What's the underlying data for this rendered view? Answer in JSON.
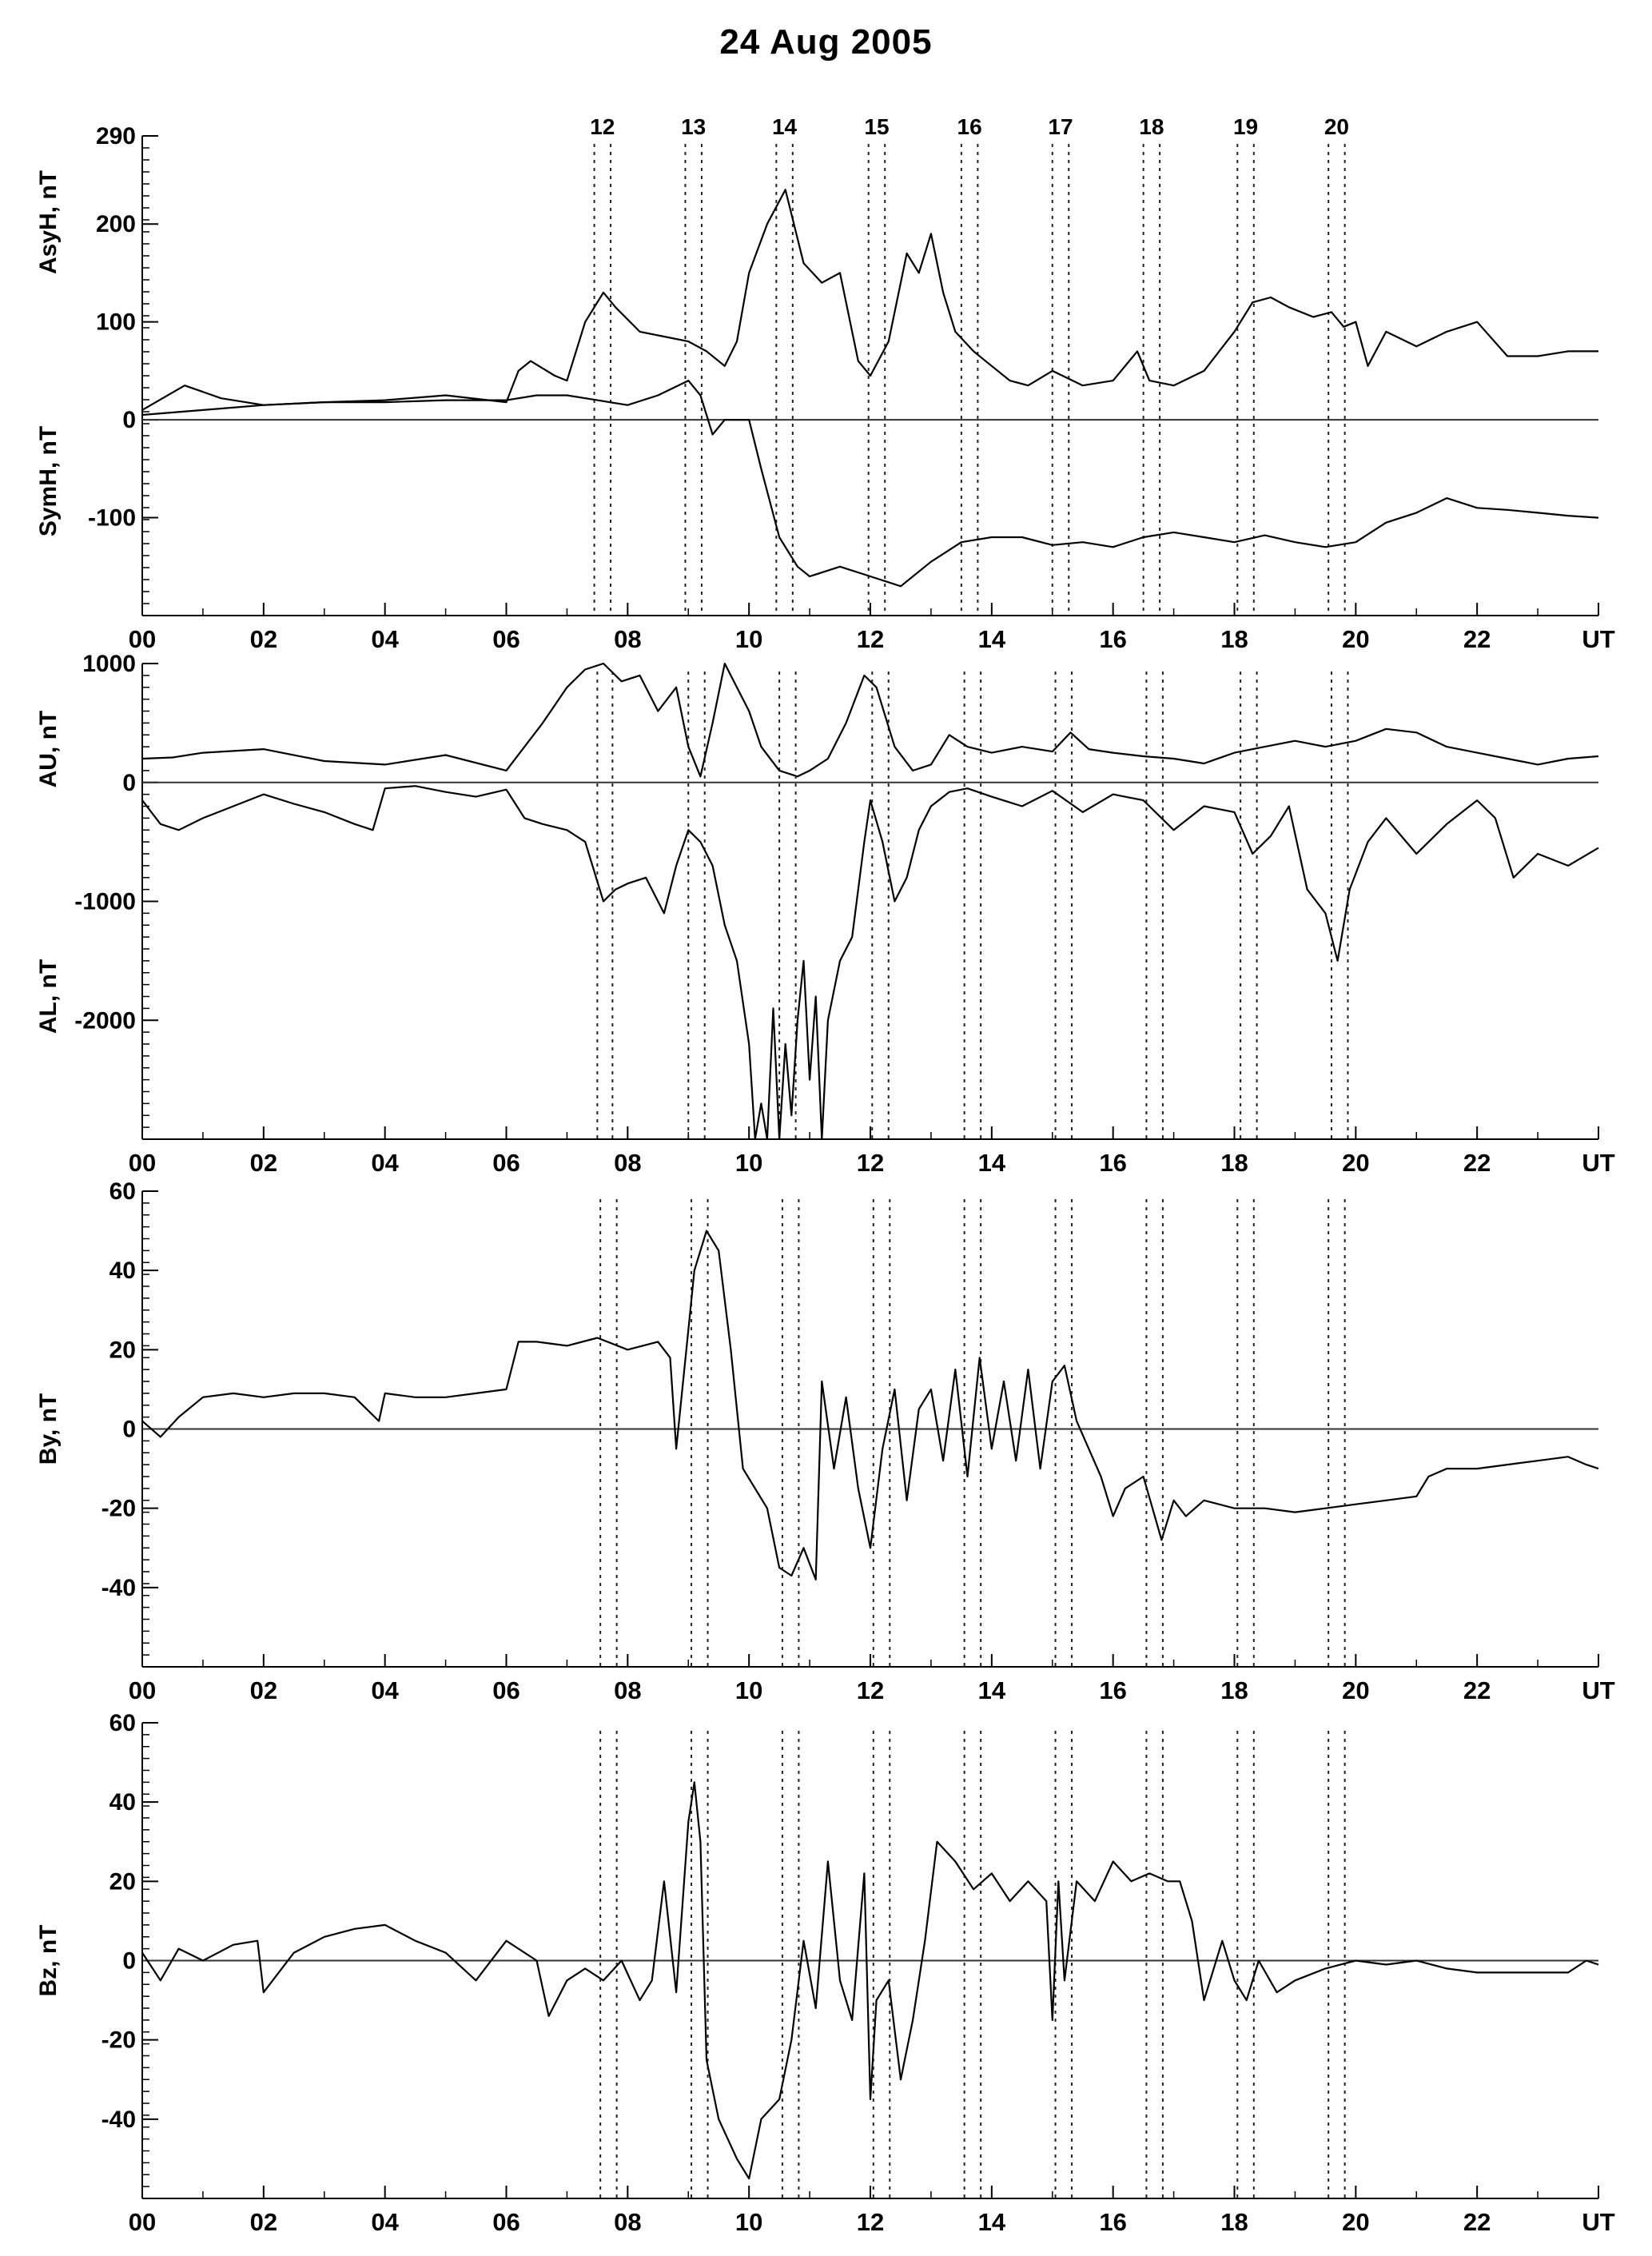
{
  "title": "24  Aug  2005",
  "x_axis": {
    "ticks": [
      "00",
      "02",
      "04",
      "06",
      "08",
      "10",
      "12",
      "14",
      "16",
      "18",
      "20",
      "22",
      "UT"
    ],
    "range_hours": [
      0,
      24
    ]
  },
  "chart_data": [
    {
      "type": "line",
      "panel": "AsyH / SymH",
      "ylabels": [
        "AsyH, nT",
        "SymH, nT"
      ],
      "ylim": [
        -200,
        290
      ],
      "yticks": [
        290,
        200,
        100,
        0,
        -100
      ],
      "event_numbers": [
        "12",
        "13",
        "14",
        "15",
        "16",
        "17",
        "18",
        "19",
        "20"
      ],
      "events": [
        [
          7.45,
          7.72
        ],
        [
          8.95,
          9.22
        ],
        [
          10.45,
          10.72
        ],
        [
          11.97,
          12.24
        ],
        [
          13.5,
          13.77
        ],
        [
          15.0,
          15.27
        ],
        [
          16.5,
          16.77
        ],
        [
          18.05,
          18.32
        ],
        [
          19.55,
          19.82
        ]
      ],
      "series": [
        {
          "name": "AsyH",
          "x": [
            0,
            0.7,
            1.3,
            2,
            3,
            4,
            5,
            6,
            6.2,
            6.4,
            6.8,
            7,
            7.3,
            7.6,
            7.8,
            8.2,
            8.6,
            9,
            9.3,
            9.6,
            9.8,
            10,
            10.3,
            10.6,
            10.9,
            11.2,
            11.5,
            11.8,
            12,
            12.3,
            12.6,
            12.8,
            13,
            13.2,
            13.4,
            13.7,
            14,
            14.3,
            14.6,
            15,
            15.5,
            16,
            16.4,
            16.6,
            17,
            17.5,
            18,
            18.3,
            18.6,
            18.9,
            19.3,
            19.6,
            19.8,
            20,
            20.2,
            20.5,
            21,
            21.5,
            22,
            22.5,
            23,
            23.5,
            24
          ],
          "y": [
            10,
            35,
            22,
            15,
            18,
            20,
            25,
            18,
            50,
            60,
            45,
            40,
            100,
            130,
            115,
            90,
            85,
            80,
            70,
            55,
            80,
            150,
            200,
            235,
            160,
            140,
            150,
            60,
            45,
            80,
            170,
            150,
            190,
            130,
            90,
            70,
            55,
            40,
            35,
            50,
            35,
            40,
            70,
            40,
            35,
            50,
            90,
            120,
            125,
            115,
            105,
            110,
            95,
            100,
            55,
            90,
            75,
            90,
            100,
            65,
            65,
            70,
            70
          ]
        },
        {
          "name": "SymH",
          "x": [
            0,
            1,
            2,
            3,
            4,
            5,
            6,
            6.5,
            7,
            7.5,
            8,
            8.5,
            9,
            9.2,
            9.4,
            9.6,
            10,
            10.2,
            10.5,
            10.8,
            11,
            11.5,
            12,
            12.5,
            13,
            13.5,
            14,
            14.5,
            15,
            15.5,
            16,
            16.5,
            17,
            17.5,
            18,
            18.5,
            19,
            19.5,
            20,
            20.5,
            21,
            21.5,
            22,
            22.5,
            23,
            23.5,
            24
          ],
          "y": [
            5,
            10,
            15,
            18,
            18,
            20,
            20,
            25,
            25,
            20,
            15,
            25,
            40,
            25,
            -15,
            0,
            0,
            -50,
            -120,
            -150,
            -160,
            -150,
            -160,
            -170,
            -145,
            -125,
            -120,
            -120,
            -128,
            -125,
            -130,
            -120,
            -115,
            -120,
            -125,
            -118,
            -125,
            -130,
            -125,
            -105,
            -95,
            -80,
            -90,
            -92,
            -95,
            -98,
            -100
          ]
        }
      ]
    },
    {
      "type": "line",
      "panel": "AU / AL",
      "ylabels": [
        "AU, nT",
        "AL, nT"
      ],
      "ylim": [
        -3000,
        1000
      ],
      "yticks": [
        1000,
        0,
        -1000,
        -2000
      ],
      "events": [
        [
          7.5,
          7.75
        ],
        [
          9.0,
          9.27
        ],
        [
          10.5,
          10.77
        ],
        [
          12.03,
          12.3
        ],
        [
          13.55,
          13.82
        ],
        [
          15.05,
          15.32
        ],
        [
          16.55,
          16.82
        ],
        [
          18.1,
          18.37
        ],
        [
          19.6,
          19.87
        ]
      ],
      "series": [
        {
          "name": "AU",
          "x": [
            0,
            0.5,
            1,
            2,
            3,
            4,
            5,
            6,
            6.3,
            6.6,
            7,
            7.3,
            7.6,
            7.9,
            8.2,
            8.5,
            8.8,
            9,
            9.2,
            9.4,
            9.6,
            9.8,
            10,
            10.2,
            10.5,
            10.8,
            11,
            11.3,
            11.6,
            11.9,
            12.1,
            12.4,
            12.7,
            13,
            13.3,
            13.6,
            14,
            14.5,
            15,
            15.3,
            15.6,
            16,
            16.5,
            17,
            17.5,
            18,
            18.5,
            19,
            19.5,
            20,
            20.5,
            21,
            21.5,
            22,
            22.5,
            23,
            23.5,
            24
          ],
          "y": [
            200,
            210,
            250,
            280,
            180,
            150,
            230,
            100,
            300,
            500,
            800,
            950,
            1000,
            850,
            900,
            600,
            800,
            300,
            50,
            500,
            1000,
            800,
            600,
            300,
            100,
            50,
            100,
            200,
            500,
            900,
            800,
            300,
            100,
            150,
            400,
            300,
            250,
            300,
            260,
            420,
            280,
            250,
            220,
            200,
            160,
            250,
            300,
            350,
            300,
            350,
            450,
            420,
            300,
            250,
            200,
            150,
            200,
            220
          ]
        },
        {
          "name": "AL",
          "x": [
            0,
            0.3,
            0.6,
            1,
            1.5,
            2,
            2.5,
            3,
            3.5,
            3.8,
            4,
            4.5,
            5,
            5.5,
            6,
            6.3,
            6.6,
            7,
            7.3,
            7.6,
            7.8,
            8,
            8.3,
            8.6,
            8.8,
            9,
            9.2,
            9.4,
            9.6,
            9.8,
            10,
            10.1,
            10.2,
            10.3,
            10.4,
            10.5,
            10.6,
            10.7,
            10.8,
            10.9,
            11,
            11.1,
            11.2,
            11.3,
            11.5,
            11.7,
            11.9,
            12,
            12.2,
            12.4,
            12.6,
            12.8,
            13,
            13.3,
            13.6,
            14,
            14.5,
            15,
            15.5,
            16,
            16.5,
            17,
            17.5,
            18,
            18.3,
            18.6,
            18.9,
            19.2,
            19.5,
            19.7,
            19.9,
            20.2,
            20.5,
            21,
            21.5,
            22,
            22.3,
            22.6,
            23,
            23.5,
            24
          ],
          "y": [
            -150,
            -350,
            -400,
            -300,
            -200,
            -100,
            -180,
            -250,
            -350,
            -400,
            -50,
            -30,
            -80,
            -120,
            -60,
            -300,
            -350,
            -400,
            -500,
            -1000,
            -900,
            -850,
            -800,
            -1100,
            -700,
            -400,
            -500,
            -700,
            -1200,
            -1500,
            -2200,
            -3000,
            -2700,
            -3000,
            -1900,
            -3000,
            -2200,
            -2800,
            -2000,
            -1500,
            -2500,
            -1800,
            -3000,
            -2000,
            -1500,
            -1300,
            -500,
            -150,
            -500,
            -1000,
            -800,
            -400,
            -200,
            -80,
            -50,
            -120,
            -200,
            -70,
            -250,
            -100,
            -150,
            -400,
            -200,
            -250,
            -600,
            -450,
            -200,
            -900,
            -1100,
            -1500,
            -900,
            -500,
            -300,
            -600,
            -350,
            -150,
            -300,
            -800,
            -600,
            -700,
            -550
          ]
        }
      ]
    },
    {
      "type": "line",
      "panel": "By",
      "ylabels": [
        "By, nT"
      ],
      "ylim": [
        -60,
        60
      ],
      "yticks": [
        60,
        40,
        20,
        0,
        -20,
        -40
      ],
      "events": [
        [
          7.55,
          7.82
        ],
        [
          9.05,
          9.32
        ],
        [
          10.55,
          10.82
        ],
        [
          12.05,
          12.32
        ],
        [
          13.55,
          13.82
        ],
        [
          15.05,
          15.32
        ],
        [
          16.55,
          16.82
        ],
        [
          18.05,
          18.32
        ],
        [
          19.55,
          19.82
        ]
      ],
      "series": [
        {
          "name": "By",
          "x": [
            0,
            0.3,
            0.6,
            1,
            1.5,
            2,
            2.5,
            3,
            3.5,
            3.9,
            4,
            4.5,
            5,
            5.5,
            6,
            6.2,
            6.5,
            7,
            7.5,
            8,
            8.5,
            8.7,
            8.8,
            9,
            9.1,
            9.3,
            9.5,
            9.7,
            9.9,
            10.1,
            10.3,
            10.5,
            10.7,
            10.9,
            11.1,
            11.2,
            11.4,
            11.6,
            11.8,
            12,
            12.2,
            12.4,
            12.6,
            12.8,
            13,
            13.2,
            13.4,
            13.6,
            13.8,
            14,
            14.2,
            14.4,
            14.6,
            14.8,
            15,
            15.2,
            15.4,
            15.6,
            15.8,
            16,
            16.2,
            16.5,
            16.8,
            17,
            17.2,
            17.5,
            18,
            18.5,
            19,
            19.5,
            20,
            20.5,
            21,
            21.2,
            21.5,
            22,
            22.5,
            23,
            23.5,
            23.8,
            24
          ],
          "y": [
            2,
            -2,
            3,
            8,
            9,
            8,
            9,
            9,
            8,
            2,
            9,
            8,
            8,
            9,
            10,
            22,
            22,
            21,
            23,
            20,
            22,
            18,
            -5,
            25,
            40,
            50,
            45,
            20,
            -10,
            -15,
            -20,
            -35,
            -37,
            -30,
            -38,
            12,
            -10,
            8,
            -15,
            -30,
            -5,
            10,
            -18,
            5,
            10,
            -8,
            15,
            -12,
            18,
            -5,
            12,
            -8,
            15,
            -10,
            12,
            16,
            2,
            -5,
            -12,
            -22,
            -15,
            -12,
            -28,
            -18,
            -22,
            -18,
            -20,
            -20,
            -21,
            -20,
            -19,
            -18,
            -17,
            -12,
            -10,
            -10,
            -9,
            -8,
            -7,
            -9,
            -10
          ]
        }
      ]
    },
    {
      "type": "line",
      "panel": "Bz",
      "ylabels": [
        "Bz, nT"
      ],
      "ylim": [
        -60,
        60
      ],
      "yticks": [
        60,
        40,
        20,
        0,
        -20,
        -40
      ],
      "events": [
        [
          7.55,
          7.82
        ],
        [
          9.05,
          9.32
        ],
        [
          10.55,
          10.82
        ],
        [
          12.05,
          12.32
        ],
        [
          13.55,
          13.82
        ],
        [
          15.05,
          15.32
        ],
        [
          16.55,
          16.82
        ],
        [
          18.05,
          18.32
        ],
        [
          19.55,
          19.82
        ]
      ],
      "series": [
        {
          "name": "Bz",
          "x": [
            0,
            0.3,
            0.6,
            1,
            1.5,
            1.9,
            2,
            2.5,
            3,
            3.5,
            4,
            4.5,
            5,
            5.5,
            6,
            6.5,
            6.7,
            7,
            7.3,
            7.6,
            7.9,
            8.2,
            8.4,
            8.6,
            8.8,
            9,
            9.1,
            9.2,
            9.3,
            9.5,
            9.8,
            10,
            10.2,
            10.5,
            10.7,
            10.9,
            11.1,
            11.3,
            11.5,
            11.7,
            11.9,
            12,
            12.1,
            12.3,
            12.5,
            12.7,
            12.9,
            13.1,
            13.4,
            13.7,
            14,
            14.3,
            14.6,
            14.9,
            15,
            15.1,
            15.2,
            15.4,
            15.7,
            16,
            16.3,
            16.6,
            16.9,
            17.1,
            17.3,
            17.5,
            17.8,
            18,
            18.2,
            18.4,
            18.7,
            19,
            19.5,
            20,
            20.5,
            21,
            21.5,
            22,
            22.5,
            23,
            23.5,
            23.8,
            24
          ],
          "y": [
            2,
            -5,
            3,
            0,
            4,
            5,
            -8,
            2,
            6,
            8,
            9,
            5,
            2,
            -5,
            5,
            0,
            -14,
            -5,
            -2,
            -5,
            0,
            -10,
            -5,
            20,
            -8,
            35,
            45,
            30,
            -25,
            -40,
            -50,
            -55,
            -40,
            -35,
            -20,
            5,
            -12,
            25,
            -5,
            -15,
            22,
            -35,
            -10,
            -5,
            -30,
            -15,
            5,
            30,
            25,
            18,
            22,
            15,
            20,
            15,
            -15,
            20,
            -5,
            20,
            15,
            25,
            20,
            22,
            20,
            20,
            10,
            -10,
            5,
            -5,
            -10,
            0,
            -8,
            -5,
            -2,
            0,
            -1,
            0,
            -2,
            -3,
            -3,
            -3,
            -3,
            0,
            -1
          ]
        }
      ]
    }
  ]
}
